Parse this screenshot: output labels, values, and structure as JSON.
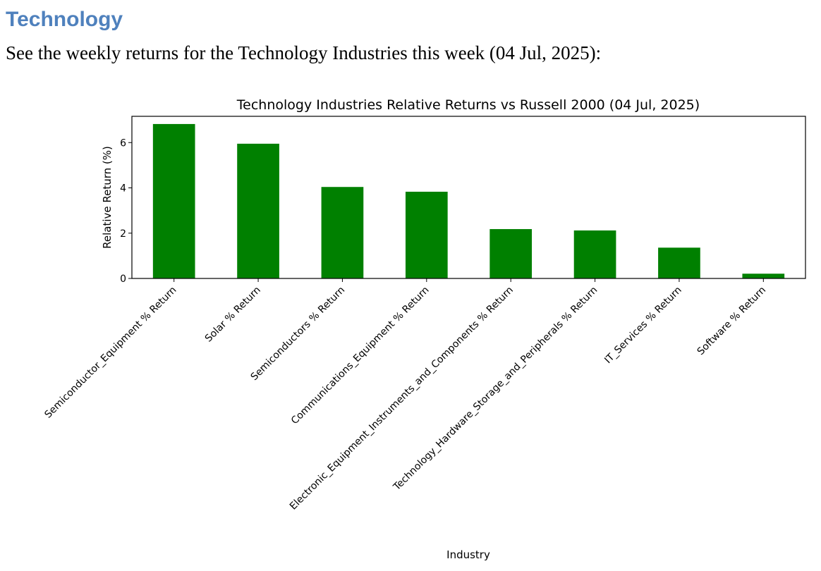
{
  "document": {
    "heading": "Technology",
    "intro": "See the weekly returns for the Technology Industries this week (04 Jul, 2025):"
  },
  "colors": {
    "heading": "#4f81bd",
    "bar": "#008000"
  },
  "chart_data": {
    "type": "bar",
    "title": "Technology Industries Relative Returns vs Russell 2000 (04 Jul, 2025)",
    "xlabel": "Industry",
    "ylabel": "Relative Return (%)",
    "categories": [
      "Semiconductor_Equipment % Return",
      "Solar % Return",
      "Semiconductors % Return",
      "Communications_Equipment % Return",
      "Electronic_Equipment_Instruments_and_Components % Return",
      "Technology_Hardware_Storage_and_Peripherals % Return",
      "IT_Services % Return",
      "Software % Return"
    ],
    "values": [
      6.82,
      5.95,
      4.04,
      3.83,
      2.18,
      2.12,
      1.36,
      0.21
    ],
    "ylim": [
      0,
      7.16
    ],
    "yticks": [
      "0",
      "2",
      "4",
      "6"
    ],
    "grid": false,
    "legend": "none"
  }
}
